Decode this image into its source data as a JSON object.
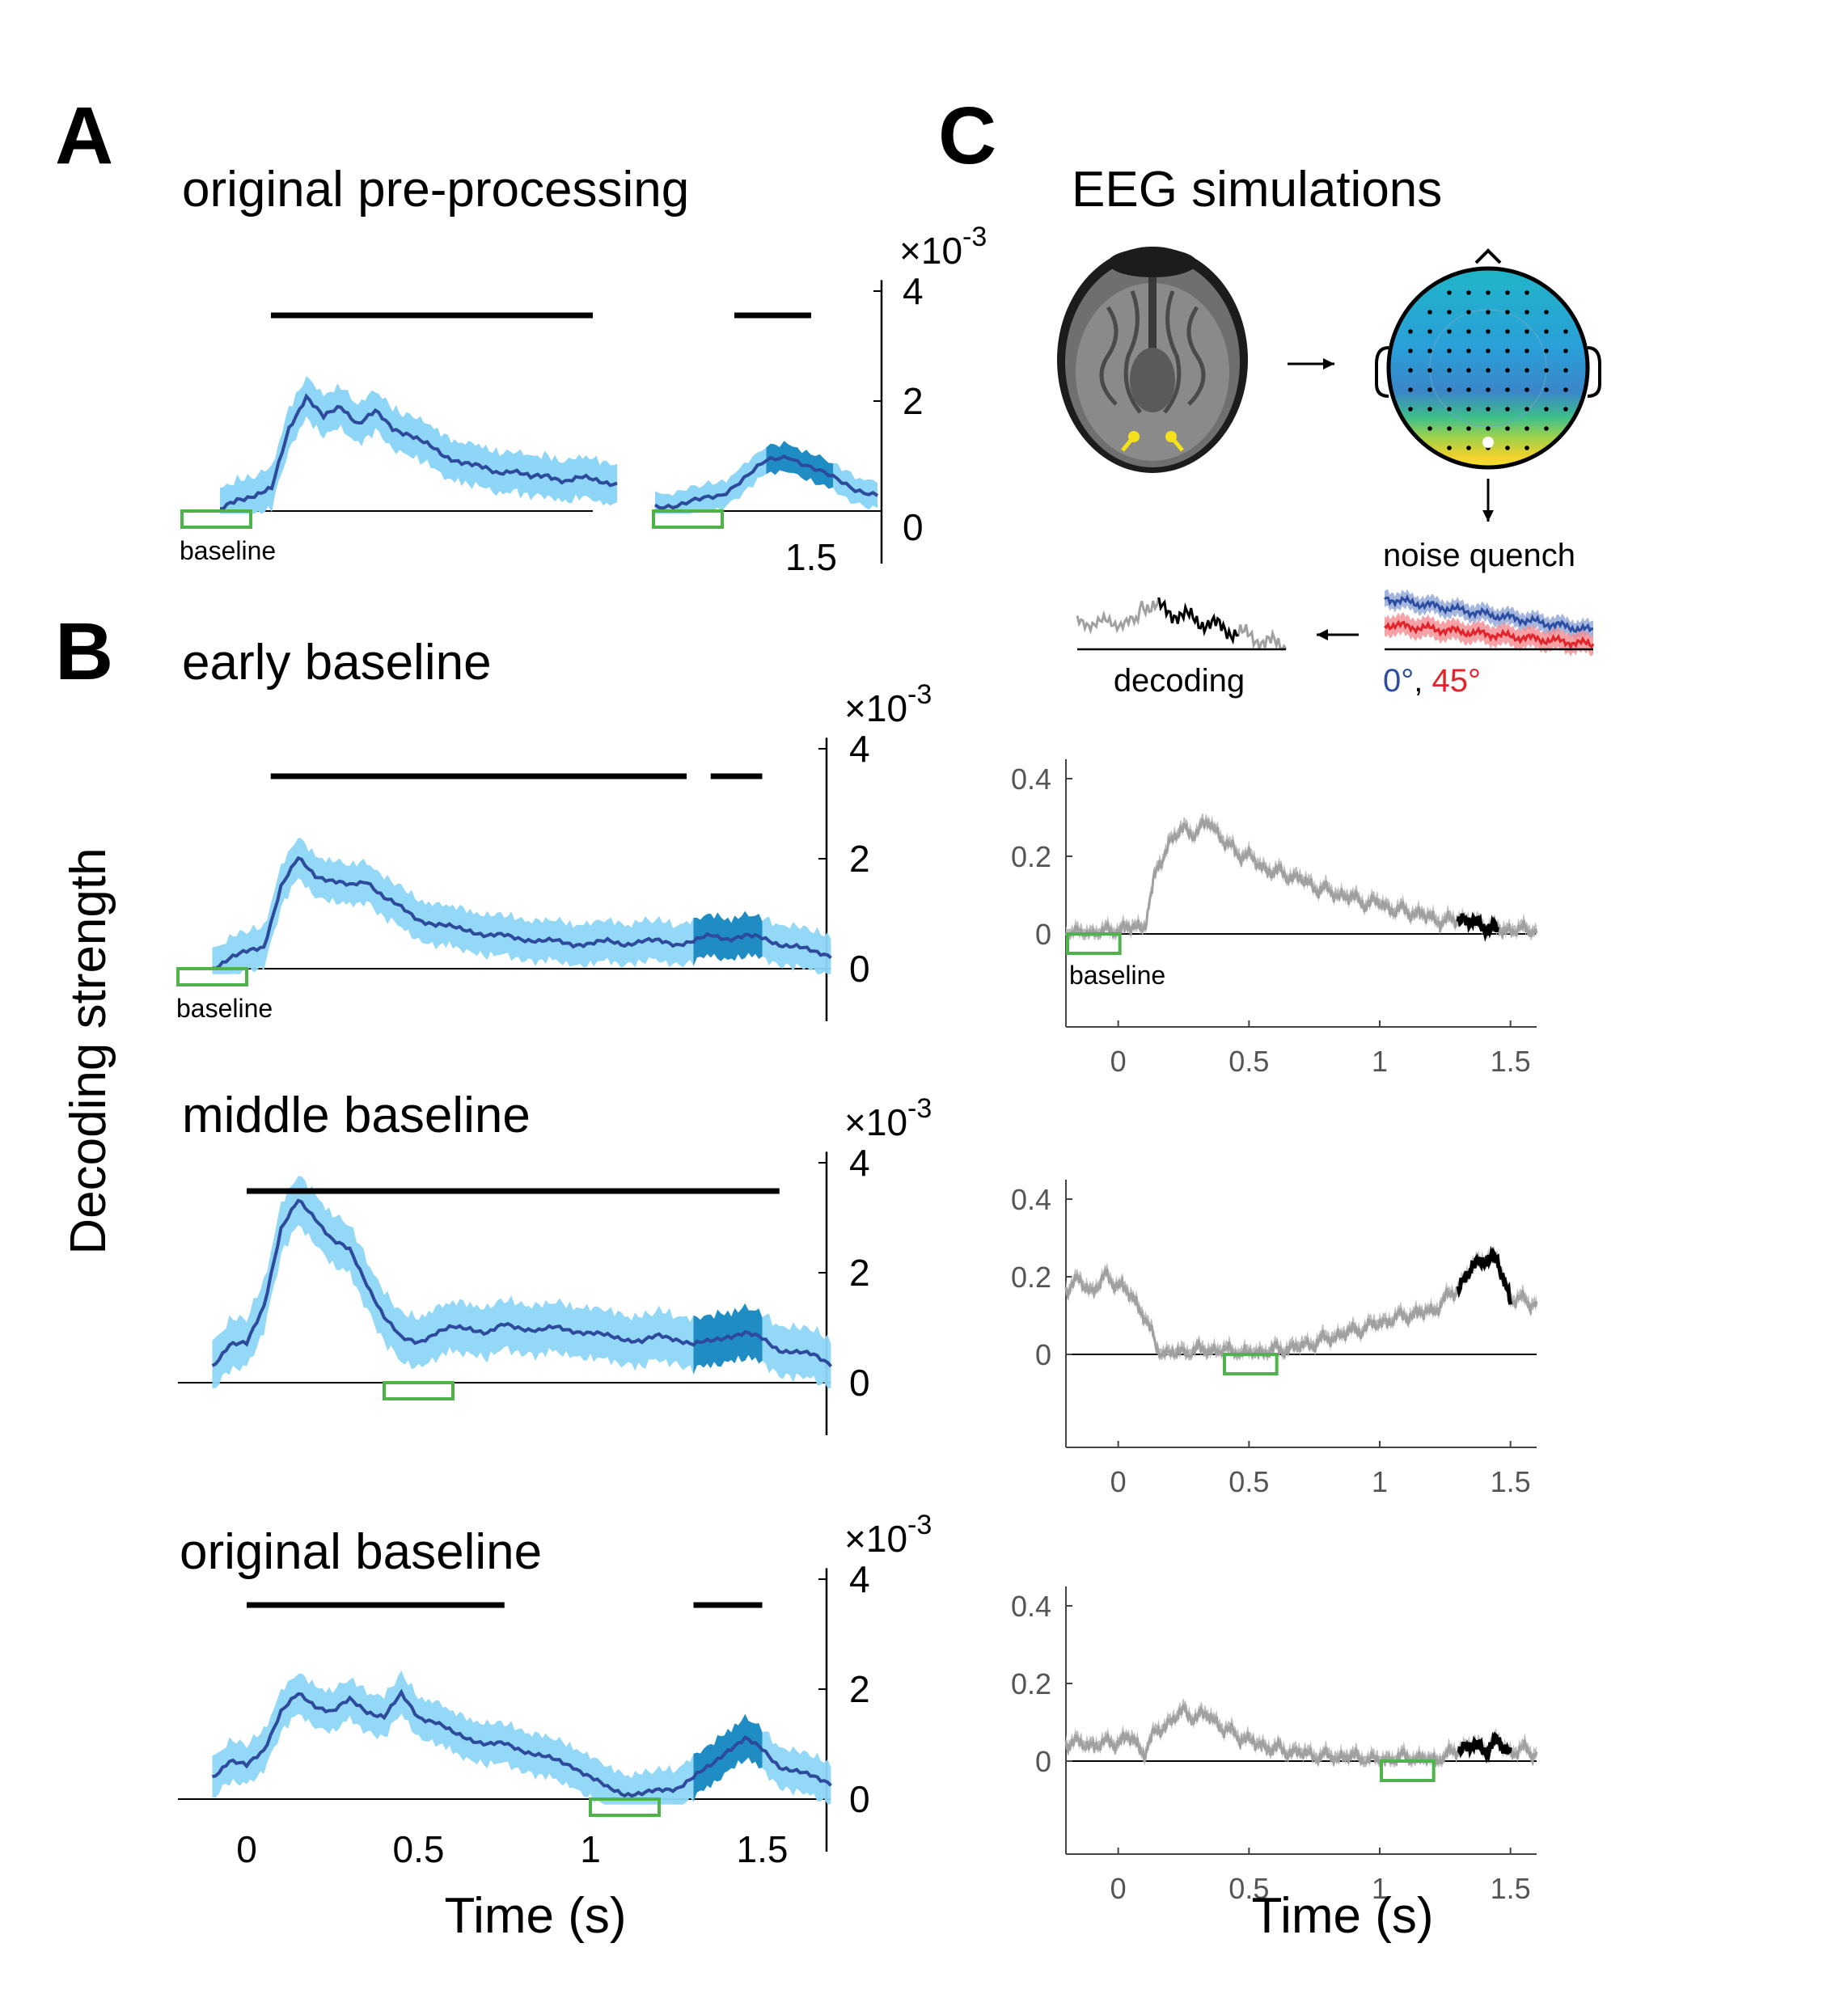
{
  "panel_labels": {
    "A": "A",
    "B": "B",
    "C": "C"
  },
  "titles": {
    "A": "original pre-processing",
    "B_early": "early baseline",
    "B_middle": "middle baseline",
    "B_original": "original baseline",
    "C": "EEG simulations"
  },
  "y_axis_label": "Decoding strength",
  "x_axis_label": "Time (s)",
  "scale_factor_label": "×10",
  "scale_exponent": "-3",
  "baseline_label": "baseline",
  "schematic": {
    "noise_quench": "noise quench",
    "decoding": "decoding",
    "legend_0": "0°",
    "legend_sep": ", ",
    "legend_45": "45°",
    "colors": {
      "blue": "#2b4ea0",
      "red": "#e2232a",
      "brain_gray": "#555555",
      "dipole": "#f5e11a"
    }
  },
  "colors": {
    "mean_line": "#2d4a9c",
    "ci_band": "#8ed6f7",
    "sig_band": "#1f8cc4",
    "baseline_box": "#4db34a",
    "sim_gray": "#a0a0a0",
    "sim_sig": "#000000"
  },
  "chart_data": [
    {
      "id": "A-original-preprocessing",
      "type": "line",
      "title": "original pre-processing",
      "ylabel": "Decoding strength",
      "y_multiplier": "×10^-3",
      "ylim": [
        0,
        4
      ],
      "yticks": [
        0,
        2,
        4
      ],
      "xticks": [
        1.5
      ],
      "segments": [
        {
          "x": [
            -0.1,
            -0.05,
            0.0,
            0.05,
            0.1,
            0.15,
            0.2,
            0.25,
            0.3,
            0.35,
            0.4,
            0.45,
            0.5,
            0.55,
            0.6,
            0.65,
            0.7,
            0.75,
            0.8,
            0.85,
            0.9,
            0.95,
            1.0,
            1.05
          ],
          "y": [
            0.0,
            0.2,
            0.3,
            0.4,
            1.5,
            2.1,
            1.7,
            1.9,
            1.6,
            1.8,
            1.5,
            1.4,
            1.2,
            1.0,
            0.9,
            0.8,
            0.7,
            0.75,
            0.6,
            0.65,
            0.55,
            0.6,
            0.55,
            0.5
          ],
          "ci": 0.45
        },
        {
          "x": [
            1.2,
            1.25,
            1.3,
            1.35,
            1.4,
            1.45,
            1.5,
            1.55,
            1.6,
            1.65,
            1.7
          ],
          "y": [
            0.1,
            0.1,
            0.2,
            0.3,
            0.6,
            0.9,
            1.0,
            0.8,
            0.6,
            0.4,
            0.3
          ],
          "ci": 0.3
        }
      ],
      "significance_bars": [
        [
          0.07,
          0.98
        ],
        [
          1.43,
          1.65
        ]
      ],
      "significant_shading": [
        [
          1.45,
          1.6
        ]
      ],
      "baseline_windows": [
        [
          -0.1,
          0.0
        ],
        [
          1.2,
          1.3
        ]
      ]
    },
    {
      "id": "B-early-baseline",
      "type": "line",
      "title": "early baseline",
      "ylabel": "Decoding strength",
      "y_multiplier": "×10^-3",
      "ylim": [
        0,
        4
      ],
      "yticks": [
        0,
        2,
        4
      ],
      "x": [
        -0.1,
        -0.05,
        0.0,
        0.05,
        0.1,
        0.15,
        0.2,
        0.25,
        0.3,
        0.35,
        0.4,
        0.45,
        0.5,
        0.55,
        0.6,
        0.65,
        0.7,
        0.75,
        0.8,
        0.85,
        0.9,
        0.95,
        1.0,
        1.05,
        1.1,
        1.15,
        1.2,
        1.25,
        1.3,
        1.35,
        1.4,
        1.45,
        1.5,
        1.55,
        1.6,
        1.65,
        1.7
      ],
      "y": [
        0.0,
        0.2,
        0.3,
        0.4,
        1.5,
        2.0,
        1.7,
        1.6,
        1.5,
        1.6,
        1.3,
        1.1,
        0.9,
        0.8,
        0.75,
        0.7,
        0.6,
        0.6,
        0.55,
        0.5,
        0.5,
        0.45,
        0.45,
        0.5,
        0.45,
        0.5,
        0.5,
        0.45,
        0.5,
        0.6,
        0.55,
        0.6,
        0.55,
        0.45,
        0.4,
        0.3,
        0.25
      ],
      "ci": 0.45,
      "significance_bars": [
        [
          0.07,
          1.28
        ],
        [
          1.35,
          1.5
        ]
      ],
      "significant_shading": [
        [
          1.3,
          1.5
        ]
      ],
      "baseline_windows": [
        [
          -0.2,
          0.0
        ]
      ]
    },
    {
      "id": "B-middle-baseline",
      "type": "line",
      "title": "middle baseline",
      "ylabel": "Decoding strength",
      "y_multiplier": "×10^-3",
      "ylim": [
        0,
        4
      ],
      "yticks": [
        0,
        2,
        4
      ],
      "x": [
        -0.1,
        -0.05,
        0.0,
        0.05,
        0.1,
        0.15,
        0.2,
        0.25,
        0.3,
        0.35,
        0.4,
        0.45,
        0.5,
        0.55,
        0.6,
        0.65,
        0.7,
        0.75,
        0.8,
        0.85,
        0.9,
        0.95,
        1.0,
        1.05,
        1.1,
        1.15,
        1.2,
        1.25,
        1.3,
        1.35,
        1.4,
        1.45,
        1.5,
        1.55,
        1.6,
        1.65,
        1.7
      ],
      "y": [
        0.3,
        0.7,
        0.7,
        1.4,
        2.8,
        3.3,
        3.0,
        2.6,
        2.4,
        1.8,
        1.2,
        0.8,
        0.75,
        0.9,
        1.0,
        1.0,
        0.9,
        1.05,
        1.0,
        0.95,
        1.0,
        0.95,
        0.9,
        0.85,
        0.8,
        0.75,
        0.85,
        0.8,
        0.7,
        0.75,
        0.85,
        0.9,
        0.8,
        0.6,
        0.55,
        0.5,
        0.35
      ],
      "ci": 0.55,
      "significance_bars": [
        [
          0.0,
          1.55
        ]
      ],
      "significant_shading": [
        [
          1.3,
          1.5
        ]
      ],
      "baseline_windows": [
        [
          0.4,
          0.6
        ]
      ]
    },
    {
      "id": "B-original-baseline",
      "type": "line",
      "title": "original baseline",
      "xlabel": "Time (s)",
      "ylabel": "Decoding strength",
      "y_multiplier": "×10^-3",
      "ylim": [
        0,
        4
      ],
      "yticks": [
        0,
        2,
        4
      ],
      "xticks": [
        0,
        0.5,
        1,
        1.5
      ],
      "x": [
        -0.1,
        -0.05,
        0.0,
        0.05,
        0.1,
        0.15,
        0.2,
        0.25,
        0.3,
        0.35,
        0.4,
        0.45,
        0.5,
        0.55,
        0.6,
        0.65,
        0.7,
        0.75,
        0.8,
        0.85,
        0.9,
        0.95,
        1.0,
        1.05,
        1.1,
        1.15,
        1.2,
        1.25,
        1.3,
        1.35,
        1.4,
        1.45,
        1.5,
        1.55,
        1.6,
        1.65,
        1.7
      ],
      "y": [
        0.4,
        0.7,
        0.6,
        0.9,
        1.6,
        1.9,
        1.7,
        1.6,
        1.8,
        1.6,
        1.5,
        1.9,
        1.5,
        1.4,
        1.2,
        1.1,
        1.0,
        1.0,
        0.9,
        0.8,
        0.7,
        0.6,
        0.4,
        0.2,
        0.1,
        0.1,
        0.15,
        0.2,
        0.4,
        0.6,
        0.9,
        1.1,
        0.9,
        0.6,
        0.5,
        0.4,
        0.3
      ],
      "ci": 0.45,
      "significance_bars": [
        [
          0.0,
          0.75
        ],
        [
          1.3,
          1.5
        ]
      ],
      "significant_shading": [
        [
          1.3,
          1.5
        ]
      ],
      "baseline_windows": [
        [
          1.0,
          1.2
        ]
      ]
    },
    {
      "id": "C-sim-early",
      "type": "line",
      "ylim": [
        -0.15,
        0.45
      ],
      "yticks": [
        0,
        0.2,
        0.4
      ],
      "xlim": [
        -0.2,
        1.6
      ],
      "xticks": [
        0,
        0.5,
        1,
        1.5
      ],
      "x": [
        -0.2,
        -0.1,
        0.0,
        0.1,
        0.15,
        0.2,
        0.25,
        0.3,
        0.35,
        0.4,
        0.45,
        0.5,
        0.55,
        0.6,
        0.65,
        0.7,
        0.75,
        0.8,
        0.85,
        0.9,
        0.95,
        1.0,
        1.05,
        1.1,
        1.15,
        1.2,
        1.25,
        1.3,
        1.35,
        1.4,
        1.45,
        1.5,
        1.55,
        1.6
      ],
      "y": [
        0.0,
        0.0,
        0.01,
        0.02,
        0.17,
        0.24,
        0.27,
        0.26,
        0.29,
        0.24,
        0.21,
        0.2,
        0.17,
        0.16,
        0.15,
        0.14,
        0.12,
        0.11,
        0.1,
        0.09,
        0.08,
        0.08,
        0.06,
        0.06,
        0.05,
        0.04,
        0.03,
        0.04,
        0.03,
        0.02,
        0.01,
        0.01,
        0.01,
        0.01
      ],
      "significant_range": [
        1.3,
        1.45
      ],
      "baseline_windows": [
        [
          -0.2,
          0.0
        ]
      ]
    },
    {
      "id": "C-sim-middle",
      "type": "line",
      "ylim": [
        -0.15,
        0.45
      ],
      "yticks": [
        0,
        0.2,
        0.4
      ],
      "xlim": [
        -0.2,
        1.6
      ],
      "xticks": [
        0,
        0.5,
        1,
        1.5
      ],
      "x": [
        -0.2,
        -0.15,
        -0.1,
        -0.05,
        0.0,
        0.05,
        0.1,
        0.15,
        0.2,
        0.3,
        0.4,
        0.5,
        0.6,
        0.7,
        0.8,
        0.9,
        1.0,
        1.1,
        1.2,
        1.3,
        1.35,
        1.4,
        1.45,
        1.5,
        1.55,
        1.6
      ],
      "y": [
        0.17,
        0.19,
        0.16,
        0.2,
        0.18,
        0.15,
        0.1,
        0.01,
        0.0,
        0.01,
        0.01,
        0.0,
        0.01,
        0.02,
        0.04,
        0.06,
        0.08,
        0.1,
        0.11,
        0.17,
        0.22,
        0.25,
        0.24,
        0.14,
        0.14,
        0.13
      ],
      "significant_range": [
        1.3,
        1.5
      ],
      "baseline_windows": [
        [
          0.4,
          0.6
        ]
      ]
    },
    {
      "id": "C-sim-original",
      "type": "line",
      "xlabel": "Time (s)",
      "ylim": [
        -0.15,
        0.45
      ],
      "yticks": [
        0,
        0.2,
        0.4
      ],
      "xlim": [
        -0.2,
        1.6
      ],
      "xticks": [
        0,
        0.5,
        1,
        1.5
      ],
      "x": [
        -0.2,
        -0.1,
        0.0,
        0.05,
        0.1,
        0.15,
        0.2,
        0.25,
        0.3,
        0.35,
        0.4,
        0.45,
        0.5,
        0.6,
        0.7,
        0.8,
        0.9,
        1.0,
        1.1,
        1.2,
        1.25,
        1.3,
        1.35,
        1.4,
        1.45,
        1.5,
        1.55,
        1.6
      ],
      "y": [
        0.05,
        0.04,
        0.05,
        0.06,
        0.02,
        0.08,
        0.1,
        0.13,
        0.11,
        0.12,
        0.08,
        0.07,
        0.05,
        0.03,
        0.02,
        0.01,
        0.01,
        0.0,
        0.01,
        0.0,
        0.01,
        0.03,
        0.04,
        0.03,
        0.05,
        0.02,
        0.03,
        0.02
      ],
      "significant_range": [
        1.3,
        1.5
      ],
      "baseline_windows": [
        [
          1.0,
          1.2
        ]
      ]
    }
  ]
}
